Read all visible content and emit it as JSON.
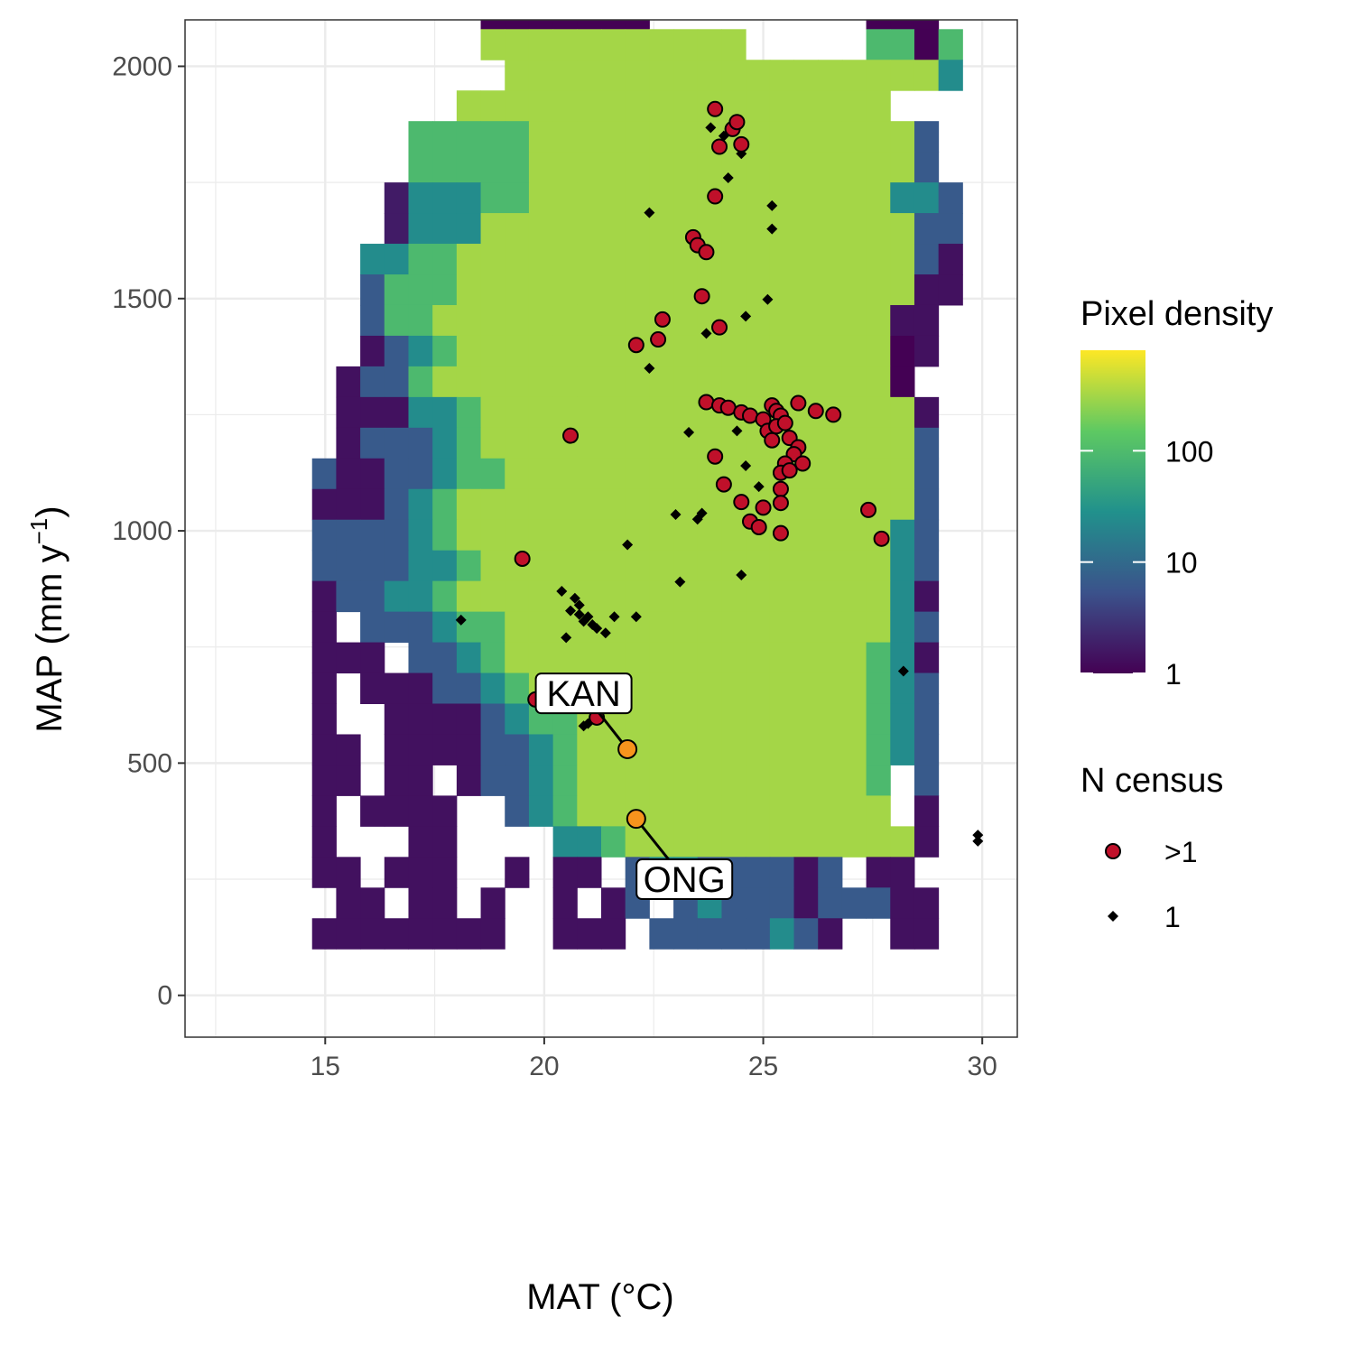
{
  "chart_data": {
    "type": "heatmap",
    "x_axis": {
      "label": "MAT (°C)",
      "range": [
        11.8,
        30.8
      ],
      "ticks": [
        15,
        20,
        25,
        30
      ]
    },
    "y_axis": {
      "label_main": "MAP",
      "label_unit": "(mm y",
      "label_sup": "−1",
      "label_close": ")",
      "range": [
        -90,
        2100
      ],
      "ticks": [
        0,
        500,
        1000,
        1500,
        2000
      ]
    },
    "grid": true,
    "legend_position": "right",
    "fill_legend": {
      "title": "Pixel density",
      "scale": "log10",
      "palette": [
        "#440154",
        "#3b528b",
        "#21918c",
        "#5ec962",
        "#fde725"
      ],
      "ticks": [
        {
          "value": 1,
          "label": "1"
        },
        {
          "value": 10,
          "label": "10"
        },
        {
          "value": 100,
          "label": "100"
        }
      ],
      "max": 800
    },
    "shape_legend": {
      "title": "N census",
      "entries": [
        {
          "label": ">1",
          "shape": "circle",
          "color": "#c0102a"
        },
        {
          "label": "1",
          "shape": "diamond",
          "color": "#000000"
        }
      ]
    },
    "heatmap": {
      "bin_width": 0.55,
      "bin_height": 66,
      "x_origin": 12.5,
      "y_origin": 100,
      "rows": [
        "..........................",
        "............................",
        ".......1.ff..eeee.........ff",
        ".......1...ee.effa........ff",
        "...........ffff...........ffcc.",
        "...........fffffff.........fff",
        "...........eeeeeeeeeee.....ddfd.",
        "............eeeeeeeeeeeeeeeeeec.",
        "..........eeeeeeeeeeeeeeeeee..",
        "........dddddeeeeeeeeeeeeeeeeb",
        "........dddddeeeeeeeeeeeeeeeeb",
        ".......2cccddeeeeeeeeeeeeeeeccb",
        ".......2ccceeeeeeeeeeeeeeeeeebb",
        "......ccddeeeeeeeeeeeeeeeeeeeba",
        "......bdddeeeeeeeeeeeeeeeeeeeaa",
        "......bddeeeeeeeeeeeeeeeeeeeaa.",
        "......abcdeeeeeeeeeeeeeeeeee1a",
        ".....abbdeeeeeeeeeeeeeeeeeee1.",
        ".....aaaccdeeeeeeeeeeeeeeeeeea",
        ".....abbbcdeeeeeeeeeeeeeeeeeeb",
        "....baabbcddeeeeeeeeeeeeeeeeeb",
        "....aaabcdeeeeeeeeeeeeeeeeeeeb",
        "....bbbbcdeeeeeeeeeeeeeeeeeecb",
        "....bbbbccdeeeeeeeeeeeeeeeeecb",
        "....abbccdeeeeeeeeeeeeeeeeeeca",
        "....a.bbbcddeeeeeeeeeeeeeeeecb",
        "....aaa.bbcdeeeeeeeeeeeeeeedca",
        "....a.aaabbcdeeeeeeeeeeeeeedcb",
        "....a..aaaabcddeeeeeeeeeeeedcb",
        "....aa.aaaabbcdeeeeeeeeeeeedcb",
        "....aa.aa.abbcdeeeeeeeeeeeed.b",
        "....a.aaaa..bcdeeeeeeeeeeeee.a",
        "....a...aa....ccdeeeeeeeeeeeea",
        "....aa.aaa..a.aa.bccbbbbab.aa",
        ".....aa.aa.a..a.ab.bcbbbabbbaa",
        "....aaaaaaaa..aaa.bbbbbcba..aa"
      ]
    },
    "points_multi": [
      {
        "x": 23.9,
        "y": 1908
      },
      {
        "x": 24.3,
        "y": 1865
      },
      {
        "x": 24.4,
        "y": 1880
      },
      {
        "x": 24.0,
        "y": 1827
      },
      {
        "x": 24.5,
        "y": 1832
      },
      {
        "x": 23.9,
        "y": 1720
      },
      {
        "x": 23.4,
        "y": 1632
      },
      {
        "x": 23.5,
        "y": 1615
      },
      {
        "x": 23.7,
        "y": 1600
      },
      {
        "x": 23.6,
        "y": 1505
      },
      {
        "x": 22.7,
        "y": 1455
      },
      {
        "x": 24.0,
        "y": 1438
      },
      {
        "x": 22.6,
        "y": 1412
      },
      {
        "x": 22.1,
        "y": 1400
      },
      {
        "x": 23.7,
        "y": 1277
      },
      {
        "x": 24.0,
        "y": 1270
      },
      {
        "x": 24.2,
        "y": 1265
      },
      {
        "x": 24.5,
        "y": 1255
      },
      {
        "x": 24.7,
        "y": 1248
      },
      {
        "x": 25.0,
        "y": 1240
      },
      {
        "x": 25.2,
        "y": 1270
      },
      {
        "x": 25.3,
        "y": 1258
      },
      {
        "x": 25.4,
        "y": 1248
      },
      {
        "x": 25.8,
        "y": 1275
      },
      {
        "x": 26.2,
        "y": 1258
      },
      {
        "x": 26.6,
        "y": 1250
      },
      {
        "x": 25.1,
        "y": 1215
      },
      {
        "x": 25.3,
        "y": 1225
      },
      {
        "x": 25.5,
        "y": 1232
      },
      {
        "x": 25.6,
        "y": 1200
      },
      {
        "x": 25.2,
        "y": 1195
      },
      {
        "x": 25.8,
        "y": 1180
      },
      {
        "x": 25.7,
        "y": 1165
      },
      {
        "x": 25.5,
        "y": 1145
      },
      {
        "x": 25.9,
        "y": 1145
      },
      {
        "x": 25.4,
        "y": 1125
      },
      {
        "x": 25.6,
        "y": 1130
      },
      {
        "x": 25.4,
        "y": 1090
      },
      {
        "x": 25.4,
        "y": 1060
      },
      {
        "x": 25.0,
        "y": 1050
      },
      {
        "x": 24.5,
        "y": 1062
      },
      {
        "x": 24.7,
        "y": 1020
      },
      {
        "x": 24.9,
        "y": 1008
      },
      {
        "x": 25.4,
        "y": 995
      },
      {
        "x": 23.9,
        "y": 1160
      },
      {
        "x": 24.1,
        "y": 1100
      },
      {
        "x": 20.6,
        "y": 1205
      },
      {
        "x": 27.4,
        "y": 1045
      },
      {
        "x": 27.7,
        "y": 983
      },
      {
        "x": 19.5,
        "y": 940
      },
      {
        "x": 21.2,
        "y": 598
      },
      {
        "x": 19.8,
        "y": 637
      }
    ],
    "points_single": [
      {
        "x": 23.8,
        "y": 1868
      },
      {
        "x": 24.1,
        "y": 1850
      },
      {
        "x": 24.5,
        "y": 1812
      },
      {
        "x": 24.2,
        "y": 1760
      },
      {
        "x": 22.4,
        "y": 1685
      },
      {
        "x": 25.2,
        "y": 1700
      },
      {
        "x": 25.2,
        "y": 1650
      },
      {
        "x": 25.1,
        "y": 1498
      },
      {
        "x": 24.6,
        "y": 1462
      },
      {
        "x": 23.7,
        "y": 1425
      },
      {
        "x": 22.4,
        "y": 1350
      },
      {
        "x": 23.3,
        "y": 1212
      },
      {
        "x": 24.4,
        "y": 1215
      },
      {
        "x": 24.6,
        "y": 1140
      },
      {
        "x": 24.9,
        "y": 1095
      },
      {
        "x": 23.0,
        "y": 1035
      },
      {
        "x": 23.6,
        "y": 1038
      },
      {
        "x": 23.5,
        "y": 1025
      },
      {
        "x": 21.9,
        "y": 970
      },
      {
        "x": 24.5,
        "y": 905
      },
      {
        "x": 23.1,
        "y": 890
      },
      {
        "x": 20.4,
        "y": 870
      },
      {
        "x": 20.7,
        "y": 855
      },
      {
        "x": 20.8,
        "y": 840
      },
      {
        "x": 20.6,
        "y": 828
      },
      {
        "x": 20.8,
        "y": 820
      },
      {
        "x": 21.0,
        "y": 815
      },
      {
        "x": 20.9,
        "y": 805
      },
      {
        "x": 21.1,
        "y": 798
      },
      {
        "x": 21.2,
        "y": 790
      },
      {
        "x": 21.4,
        "y": 780
      },
      {
        "x": 21.6,
        "y": 815
      },
      {
        "x": 22.1,
        "y": 815
      },
      {
        "x": 18.1,
        "y": 808
      },
      {
        "x": 20.5,
        "y": 770
      },
      {
        "x": 20.9,
        "y": 580
      },
      {
        "x": 21.0,
        "y": 585
      },
      {
        "x": 28.2,
        "y": 698
      },
      {
        "x": 29.9,
        "y": 345
      },
      {
        "x": 29.9,
        "y": 332
      }
    ],
    "highlighted_sites": [
      {
        "name": "KAN",
        "x": 21.9,
        "y": 530,
        "label_x": 20.9,
        "label_y": 650
      },
      {
        "name": "ONG",
        "x": 22.1,
        "y": 380,
        "label_x": 23.2,
        "label_y": 250
      }
    ]
  }
}
